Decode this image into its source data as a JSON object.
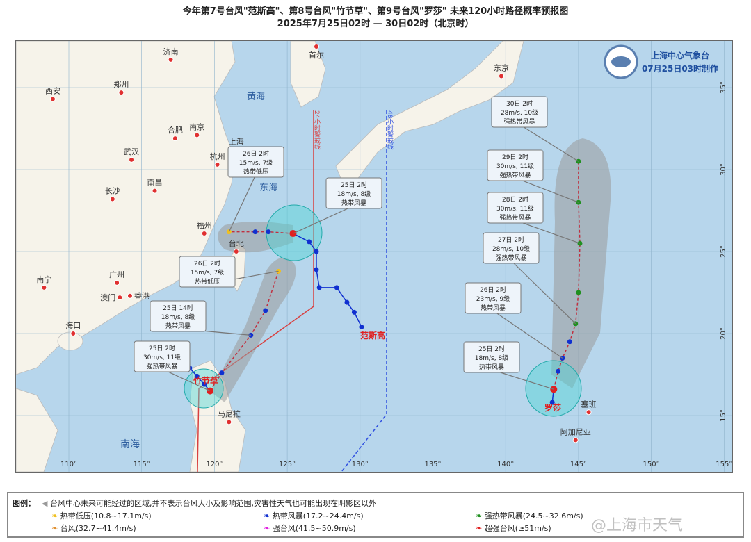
{
  "title": "今年第7号台风\"范斯高\"、第8号台风\"竹节草\"、第9号台风\"罗莎\" 未来120小时路径概率预报图",
  "subtitle": "2025年7月25日02时 — 30日02时（北京时）",
  "agency": {
    "name": "上海中心气象台",
    "made": "07月25日03时制作"
  },
  "axes": {
    "lon": [
      "110°",
      "115°",
      "120°",
      "125°",
      "130°",
      "135°",
      "140°",
      "145°",
      "150°",
      "155°"
    ],
    "lat": [
      "35°",
      "30°",
      "25°",
      "20°",
      "15°"
    ]
  },
  "seas": [
    "黄海",
    "东海",
    "南海"
  ],
  "cities": [
    [
      "济南",
      117,
      36.7
    ],
    [
      "西安",
      108.9,
      34.3
    ],
    [
      "郑州",
      113.6,
      34.7
    ],
    [
      "合肥",
      117.3,
      31.9
    ],
    [
      "南京",
      118.8,
      32.1
    ],
    [
      "武汉",
      114.3,
      30.6
    ],
    [
      "上海",
      121.5,
      31.2
    ],
    [
      "杭州",
      120.2,
      30.3
    ],
    [
      "长沙",
      113,
      28.2
    ],
    [
      "南昌",
      115.9,
      28.7
    ],
    [
      "福州",
      119.3,
      26.1
    ],
    [
      "广州",
      113.3,
      23.1
    ],
    [
      "香港",
      114.2,
      22.3
    ],
    [
      "澳门",
      113.5,
      22.2
    ],
    [
      "南宁",
      108.3,
      22.8
    ],
    [
      "海口",
      110.3,
      20
    ],
    [
      "台北",
      121.5,
      25
    ],
    [
      "首尔",
      127,
      37.5
    ],
    [
      "东京",
      139.7,
      35.7
    ],
    [
      "马尼拉",
      121,
      14.6
    ],
    [
      "塞班",
      145.7,
      15.2
    ],
    [
      "阿加尼亚",
      144.8,
      13.5
    ]
  ],
  "warning_lines": {
    "h24": "24小时警戒线",
    "h48": "48小时警戒线"
  },
  "typhoons": [
    {
      "name": "范斯高",
      "color": "#e02020",
      "past": [
        [
          130.1,
          20.4
        ],
        [
          129.6,
          21.3
        ],
        [
          129.1,
          21.9
        ],
        [
          128.4,
          22.8
        ],
        [
          127.2,
          22.8
        ],
        [
          127.0,
          23.9
        ],
        [
          127.0,
          25.0
        ],
        [
          126.5,
          25.6
        ],
        [
          125.4,
          26.1
        ]
      ],
      "forecast": [
        [
          125.4,
          26.1
        ],
        [
          123.7,
          26.2
        ],
        [
          122.8,
          26.2
        ],
        [
          121.0,
          26.2
        ]
      ],
      "labels": [
        {
          "time": "25日 2时",
          "wind": "18m/s, 8级",
          "grade": "热带风暴"
        },
        {
          "time": "26日 2时",
          "wind": "15m/s, 7级",
          "grade": "热带低压"
        }
      ]
    },
    {
      "name": "竹节草",
      "color": "#e02020",
      "past": [
        [
          118.3,
          17.9
        ],
        [
          118.8,
          17.4
        ],
        [
          119.3,
          16.9
        ],
        [
          119.7,
          16.5
        ]
      ],
      "forecast": [
        [
          119.7,
          16.5
        ],
        [
          120.5,
          17.6
        ],
        [
          122.5,
          19.9
        ],
        [
          123.5,
          21.4
        ],
        [
          124.4,
          23.8
        ]
      ],
      "labels": [
        {
          "time": "25日 2时",
          "wind": "30m/s, 11级",
          "grade": "强热带风暴"
        },
        {
          "time": "25日 14时",
          "wind": "18m/s, 8级",
          "grade": "热带风暴"
        },
        {
          "time": "26日 2时",
          "wind": "15m/s, 7级",
          "grade": "热带低压"
        }
      ]
    },
    {
      "name": "罗莎",
      "color": "#e02020",
      "past": [
        [
          143.2,
          15.8
        ],
        [
          143.3,
          16.6
        ]
      ],
      "forecast": [
        [
          143.3,
          16.6
        ],
        [
          143.6,
          17.7
        ],
        [
          143.9,
          18.5
        ],
        [
          144.4,
          19.5
        ],
        [
          144.8,
          20.6
        ],
        [
          145.0,
          22.5
        ],
        [
          145.1,
          25.5
        ],
        [
          145.0,
          28.0
        ],
        [
          145.0,
          30.5
        ]
      ],
      "labels": [
        {
          "time": "25日 2时",
          "wind": "18m/s, 8级",
          "grade": "热带风暴"
        },
        {
          "time": "26日 2时",
          "wind": "23m/s, 9级",
          "grade": "热带风暴"
        },
        {
          "time": "27日 2时",
          "wind": "28m/s, 10级",
          "grade": "强热带风暴"
        },
        {
          "time": "28日 2时",
          "wind": "30m/s, 11级",
          "grade": "强热带风暴"
        },
        {
          "time": "29日 2时",
          "wind": "30m/s, 11级",
          "grade": "强热带风暴"
        },
        {
          "time": "30日 2时",
          "wind": "28m/s, 10级",
          "grade": "强热带风暴"
        }
      ]
    }
  ],
  "legend": {
    "heading": "图例：",
    "cone": "台风中心未来可能经过的区域,并不表示台风大小及影响范围,灾害性天气也可能出现在阴影区以外",
    "items": [
      {
        "label": "热带低压(10.8~17.1m/s)",
        "color": "#f0c020"
      },
      {
        "label": "热带风暴(17.2~24.4m/s)",
        "color": "#1030d0"
      },
      {
        "label": "强热带风暴(24.5~32.6m/s)",
        "color": "#209020"
      },
      {
        "label": "台风(32.7~41.4m/s)",
        "color": "#e09030"
      },
      {
        "label": "强台风(41.5~50.9m/s)",
        "color": "#e020e0"
      },
      {
        "label": "超强台风(≥51m/s)",
        "color": "#e02020"
      }
    ]
  },
  "watermark": "@上海市天气"
}
